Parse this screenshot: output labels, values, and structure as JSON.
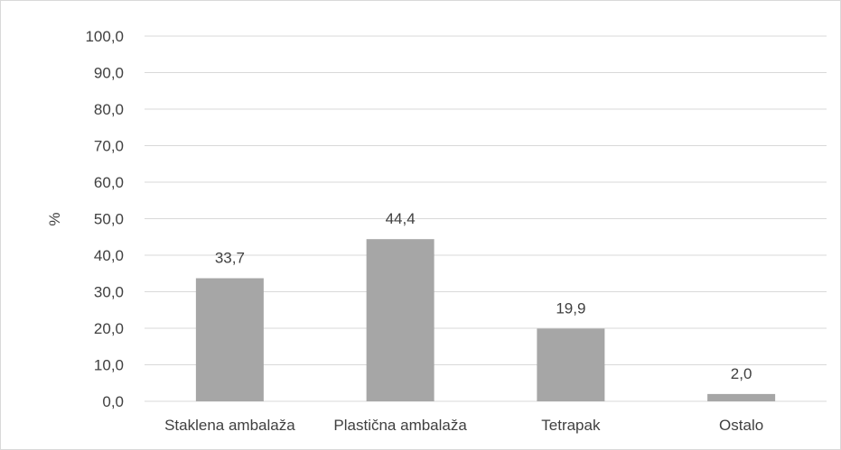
{
  "chart_data": {
    "type": "bar",
    "categories": [
      "Staklena ambalaža",
      "Plastična ambalaža",
      "Tetrapak",
      "Ostalo"
    ],
    "values": [
      33.7,
      44.4,
      19.9,
      2.0
    ],
    "value_labels": [
      "33,7",
      "44,4",
      "19,9",
      "2,0"
    ],
    "ylabel": "%",
    "xlabel": "",
    "ylim": [
      0,
      100
    ],
    "y_ticks": [
      {
        "value": 0,
        "label": "0,0"
      },
      {
        "value": 10,
        "label": "10,0"
      },
      {
        "value": 20,
        "label": "20,0"
      },
      {
        "value": 30,
        "label": "30,0"
      },
      {
        "value": 40,
        "label": "40,0"
      },
      {
        "value": 50,
        "label": "50,0"
      },
      {
        "value": 60,
        "label": "60,0"
      },
      {
        "value": 70,
        "label": "70,0"
      },
      {
        "value": 80,
        "label": "80,0"
      },
      {
        "value": 90,
        "label": "90,0"
      },
      {
        "value": 100,
        "label": "100,0"
      }
    ],
    "grid": true,
    "legend": "none",
    "colors": {
      "bar": "#a6a6a6",
      "grid": "#d9d9d9",
      "text": "#404040"
    }
  }
}
